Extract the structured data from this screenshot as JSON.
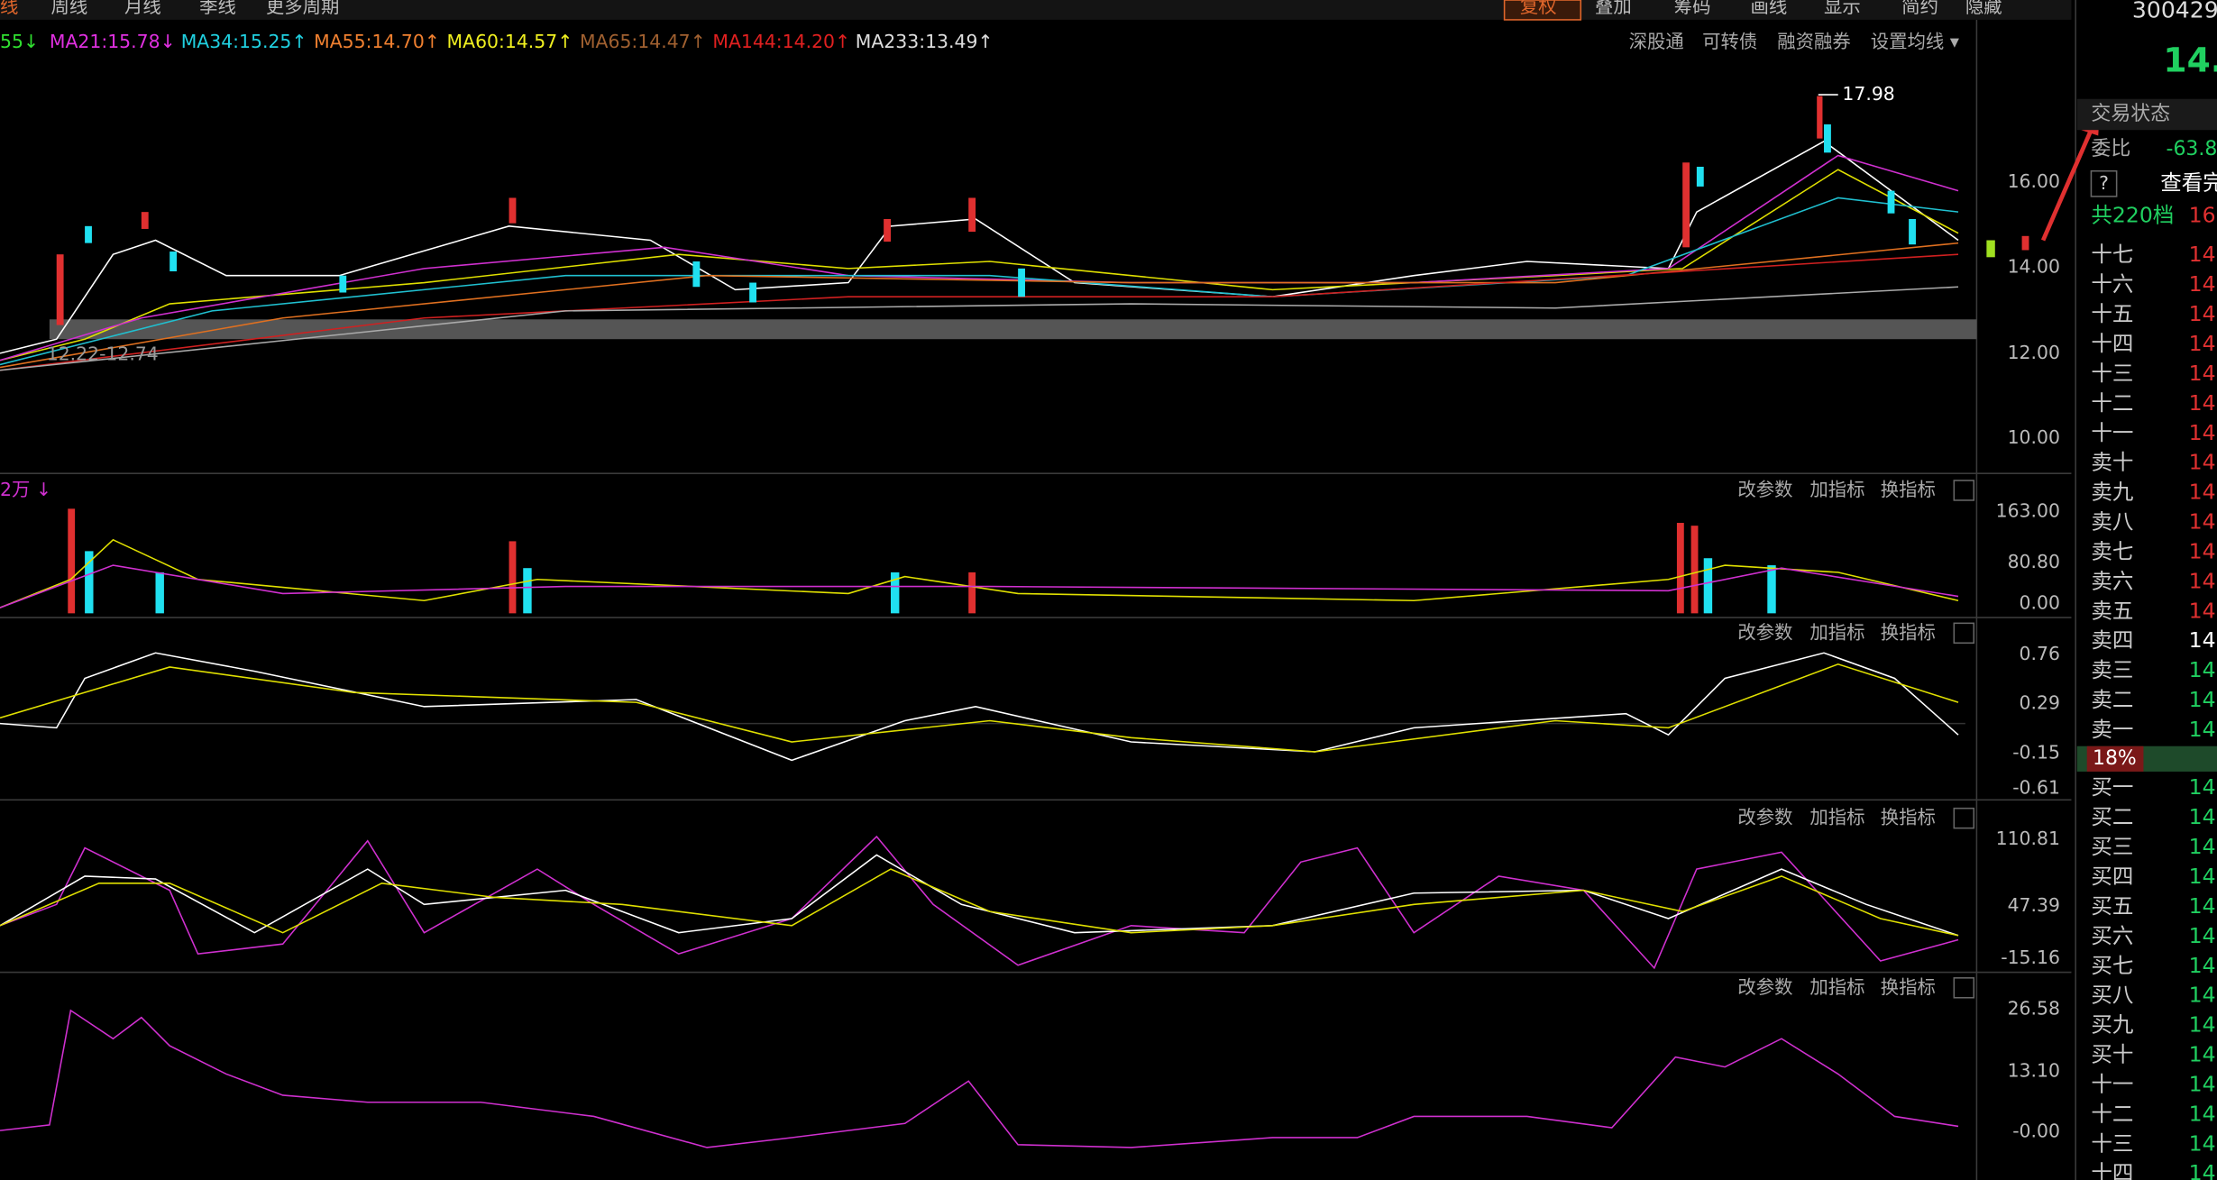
{
  "toolbar": {
    "tabs": [
      "线",
      "周线",
      "月线",
      "季线",
      "更多周期"
    ],
    "buttons": [
      "复权",
      "叠加",
      "筹码",
      "画线",
      "显示",
      "简约",
      "隐藏"
    ]
  },
  "ma_legend": [
    "55↓",
    "MA21:15.78↓",
    "MA34:15.25↑",
    "MA55:14.70↑",
    "MA60:14.57↑",
    "MA65:14.47↑",
    "MA144:14.20↑",
    "MA233:13.49↑"
  ],
  "links": [
    "深股通",
    "可转债",
    "融资融券",
    "设置均线 ▾"
  ],
  "main_panel": {
    "axis": [
      "16.00",
      "14.00",
      "12.00",
      "10.00"
    ],
    "high_label": "17.98",
    "range_label": "12.22-12.74"
  },
  "panel_buttons": [
    "改参数",
    "加指标",
    "换指标"
  ],
  "volume_panel": {
    "label": "2万 ↓",
    "axis": [
      "163.00",
      "80.80",
      "0.00"
    ]
  },
  "macd_panel": {
    "axis": [
      "0.76",
      "0.29",
      "-0.15",
      "-0.61"
    ]
  },
  "kdj_panel": {
    "axis": [
      "110.81",
      "47.39",
      "-15.16"
    ]
  },
  "fourth_panel": {
    "axis": [
      "26.58",
      "13.10",
      "-0.00"
    ]
  },
  "sidebar": {
    "code": "300429",
    "price": "14.",
    "status": "交易状态",
    "ratio_label": "委比",
    "ratio": "-63.8",
    "help": "?",
    "view": "查看完",
    "levels_label": "共220档",
    "levels_value": "16.",
    "pct": "18%",
    "sell": [
      [
        "十七",
        "14."
      ],
      [
        "十六",
        "14."
      ],
      [
        "十五",
        "14."
      ],
      [
        "十四",
        "14."
      ],
      [
        "十三",
        "14."
      ],
      [
        "十二",
        "14."
      ],
      [
        "十一",
        "14."
      ],
      [
        "卖十",
        "14."
      ],
      [
        "卖九",
        "14."
      ],
      [
        "卖八",
        "14."
      ],
      [
        "卖七",
        "14."
      ],
      [
        "卖六",
        "14."
      ],
      [
        "卖五",
        "14."
      ],
      [
        "卖四",
        "14."
      ],
      [
        "卖三",
        "14."
      ],
      [
        "卖二",
        "14."
      ],
      [
        "卖一",
        "14."
      ]
    ],
    "buy": [
      [
        "买一",
        "14."
      ],
      [
        "买二",
        "14."
      ],
      [
        "买三",
        "14."
      ],
      [
        "买四",
        "14."
      ],
      [
        "买五",
        "14."
      ],
      [
        "买六",
        "14."
      ],
      [
        "买七",
        "14."
      ],
      [
        "买八",
        "14."
      ],
      [
        "买九",
        "14."
      ],
      [
        "买十",
        "14."
      ],
      [
        "十一",
        "14."
      ],
      [
        "十二",
        "14."
      ],
      [
        "十三",
        "14."
      ],
      [
        "十四",
        "14."
      ]
    ]
  }
}
